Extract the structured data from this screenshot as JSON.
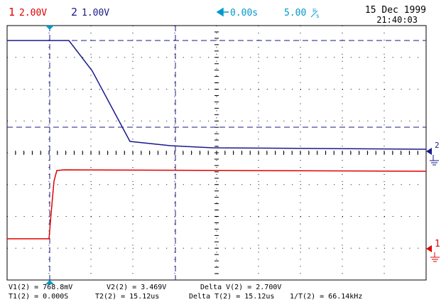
{
  "header": {
    "ch1": {
      "number": "1",
      "scale": "2.00V"
    },
    "ch2": {
      "number": "2",
      "scale": "1.00V"
    },
    "time_offset": "0.00s",
    "timebase": "5.00",
    "timebase_unit_top": "µ",
    "timebase_unit_bottom": "s",
    "date": "15 Dec 1999",
    "time": "21:40:03"
  },
  "markers": {
    "ch2": "2",
    "ch1": "1"
  },
  "measurements": {
    "row1": [
      "V1(2) = 768.8mV",
      "V2(2) = 3.469V",
      "Delta V(2) = 2.700V"
    ],
    "row2": [
      "T1(2) = 0.000S",
      "T2(2) = 15.12us",
      "Delta T(2) = 15.12us",
      "1/T(2) = 66.14kHz"
    ]
  }
}
